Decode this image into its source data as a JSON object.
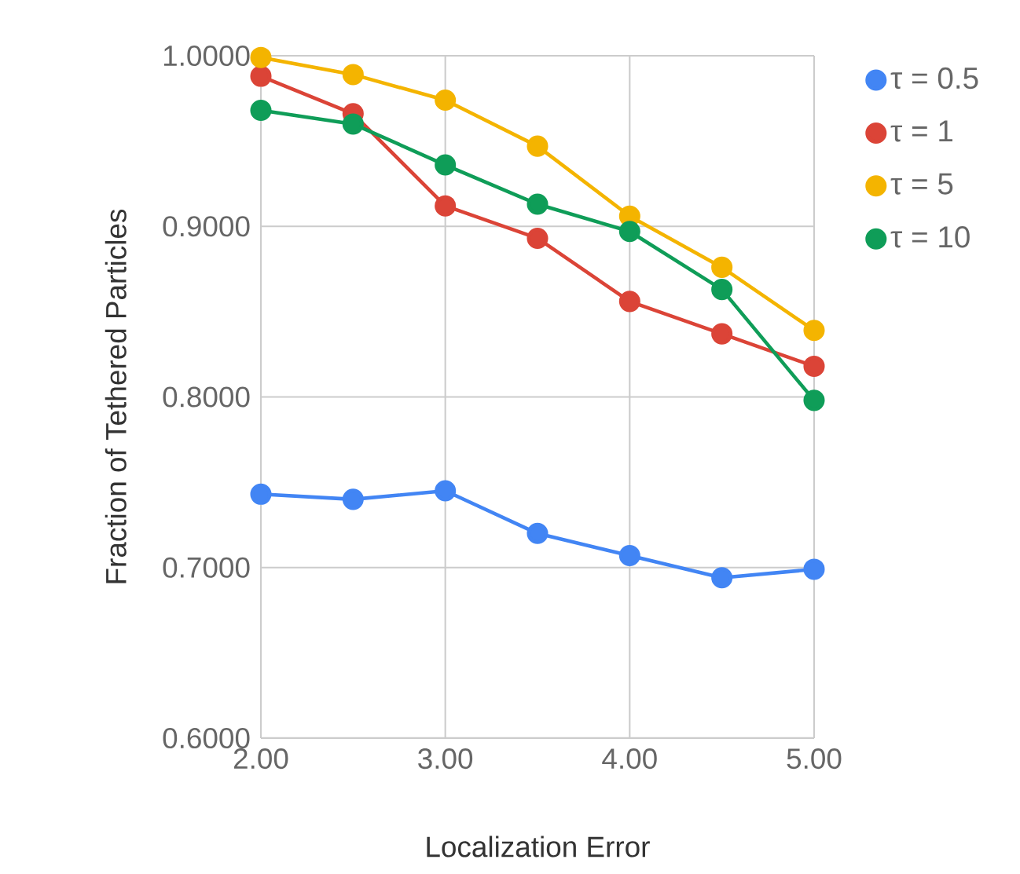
{
  "chart_data": {
    "type": "line",
    "xlabel": "Localization Error",
    "ylabel": "Fraction of Tethered Particles",
    "x": [
      2.0,
      2.5,
      3.0,
      3.5,
      4.0,
      4.5,
      5.0
    ],
    "series": [
      {
        "name": "τ = 0.5",
        "color": "#4285f4",
        "values": [
          0.743,
          0.74,
          0.745,
          0.72,
          0.707,
          0.694,
          0.699
        ]
      },
      {
        "name": "τ = 1",
        "color": "#db4437",
        "values": [
          0.988,
          0.966,
          0.912,
          0.893,
          0.856,
          0.837,
          0.818
        ]
      },
      {
        "name": "τ = 5",
        "color": "#f4b400",
        "values": [
          0.999,
          0.989,
          0.974,
          0.947,
          0.906,
          0.876,
          0.839
        ]
      },
      {
        "name": "τ = 10",
        "color": "#0f9d58",
        "values": [
          0.968,
          0.96,
          0.936,
          0.913,
          0.897,
          0.863,
          0.798
        ]
      }
    ],
    "xlim": [
      2,
      5
    ],
    "ylim": [
      0.6,
      1.0
    ],
    "xticks": [
      {
        "value": 2,
        "label": "2.00"
      },
      {
        "value": 3,
        "label": "3.00"
      },
      {
        "value": 4,
        "label": "4.00"
      },
      {
        "value": 5,
        "label": "5.00"
      }
    ],
    "yticks": [
      {
        "value": 0.6,
        "label": "0.6000"
      },
      {
        "value": 0.7,
        "label": "0.7000"
      },
      {
        "value": 0.8,
        "label": "0.8000"
      },
      {
        "value": 0.9,
        "label": "0.9000"
      },
      {
        "value": 1.0,
        "label": "1.0000"
      }
    ],
    "grid": true,
    "legend": "right",
    "marker": "circle",
    "line_style": "solid"
  }
}
